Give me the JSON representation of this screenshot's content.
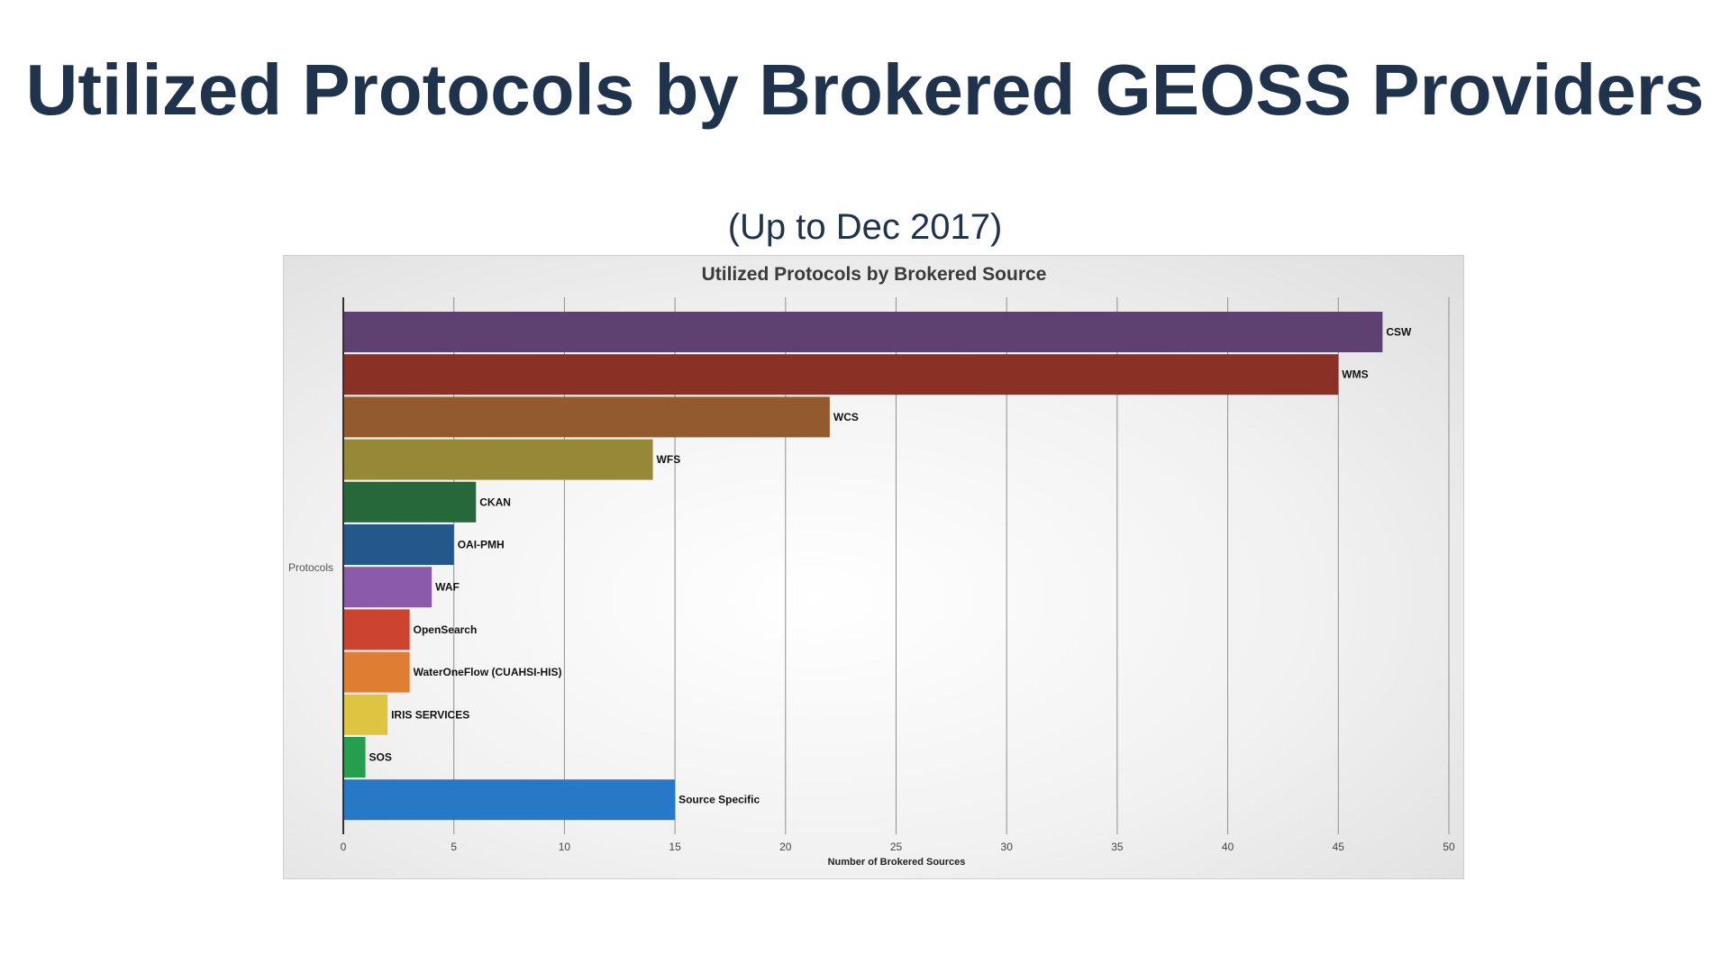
{
  "slide": {
    "title": "Utilized Protocols by Brokered GEOSS Providers",
    "subtitle": "(Up to Dec 2017)"
  },
  "chart_data": {
    "type": "bar",
    "orientation": "horizontal",
    "title": "Utilized Protocols by Brokered Source",
    "xlabel": "Number of Brokered Sources",
    "ylabel": "Protocols",
    "xlim": [
      0,
      50
    ],
    "xticks": [
      0,
      5,
      10,
      15,
      20,
      25,
      30,
      35,
      40,
      45,
      50
    ],
    "grid": true,
    "categories": [
      "CSW",
      "WMS",
      "WCS",
      "WFS",
      "CKAN",
      "OAI-PMH",
      "WAF",
      "OpenSearch",
      "WaterOneFlow (CUAHSI-HIS)",
      "IRIS SERVICES",
      "SOS",
      "Source Specific"
    ],
    "values": [
      47,
      45,
      22,
      14,
      6,
      5,
      4,
      3,
      3,
      2,
      1,
      15
    ],
    "colors": [
      "#5e4170",
      "#8a3025",
      "#935a2e",
      "#958836",
      "#27683a",
      "#24578a",
      "#8b5aa8",
      "#cc4330",
      "#df7e33",
      "#ddc541",
      "#269e4e",
      "#2779c8"
    ]
  }
}
